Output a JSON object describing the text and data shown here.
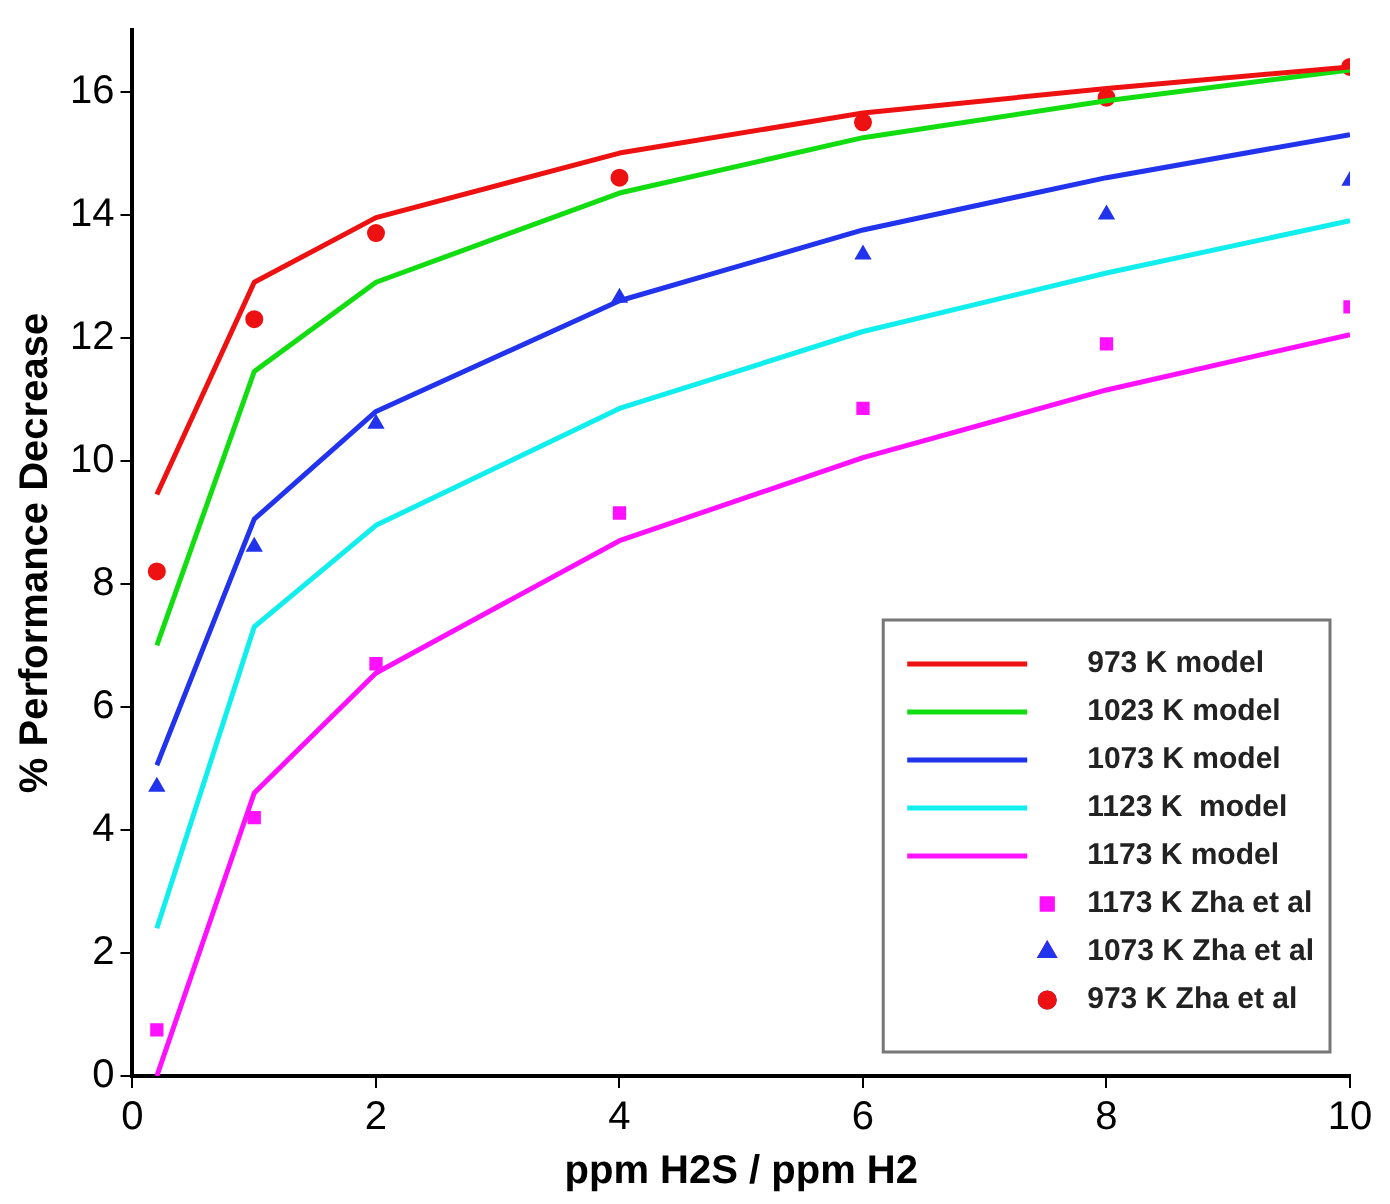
{
  "chart_data": {
    "type": "line",
    "xlabel": "ppm H2S / ppm H2",
    "ylabel": "% Performance Decrease",
    "x": [
      0.2,
      1,
      2,
      4,
      6,
      8,
      10
    ],
    "xlim": [
      0,
      10
    ],
    "xticks": [
      0,
      2,
      4,
      6,
      8,
      10
    ],
    "ylim": [
      0,
      17
    ],
    "yticks": [
      0,
      2,
      4,
      6,
      8,
      10,
      12,
      14,
      16
    ],
    "grid": false,
    "legend": "bottom right",
    "line_style": "solid",
    "series": [
      {
        "name": "973 K model",
        "color": "#ee1111",
        "values": [
          9.45,
          12.9,
          13.95,
          15.0,
          15.65,
          16.05,
          16.4
        ]
      },
      {
        "name": "1023 K model",
        "color": "#11dd11",
        "values": [
          7.0,
          11.45,
          12.9,
          14.35,
          15.25,
          15.85,
          16.35
        ]
      },
      {
        "name": "1073 K model",
        "color": "#2233ee",
        "values": [
          5.05,
          9.05,
          10.8,
          12.6,
          13.75,
          14.6,
          15.3
        ]
      },
      {
        "name": "1123 K  model",
        "color": "#11eeee",
        "values": [
          2.4,
          7.3,
          8.95,
          10.85,
          12.1,
          13.05,
          13.9
        ]
      },
      {
        "name": "1173 K model",
        "color": "#ff11ff",
        "values": [
          0.0,
          4.6,
          6.55,
          8.7,
          10.05,
          11.15,
          12.05
        ]
      },
      {
        "name": "1173 K Zha et al",
        "type": "scatter",
        "marker": "square",
        "color": "#ff11ff",
        "values": [
          0.75,
          4.2,
          6.7,
          9.15,
          10.85,
          11.9,
          12.5
        ]
      },
      {
        "name": "1073 K Zha et al",
        "type": "scatter",
        "marker": "triangle",
        "color": "#2233ee",
        "values": [
          4.7,
          8.6,
          10.6,
          12.65,
          13.35,
          14.0,
          14.55
        ]
      },
      {
        "name": "973 K Zha et al",
        "type": "scatter",
        "marker": "circle",
        "color": "#ee1111",
        "values": [
          8.2,
          12.3,
          13.7,
          14.6,
          15.5,
          15.9,
          16.4
        ]
      }
    ]
  }
}
